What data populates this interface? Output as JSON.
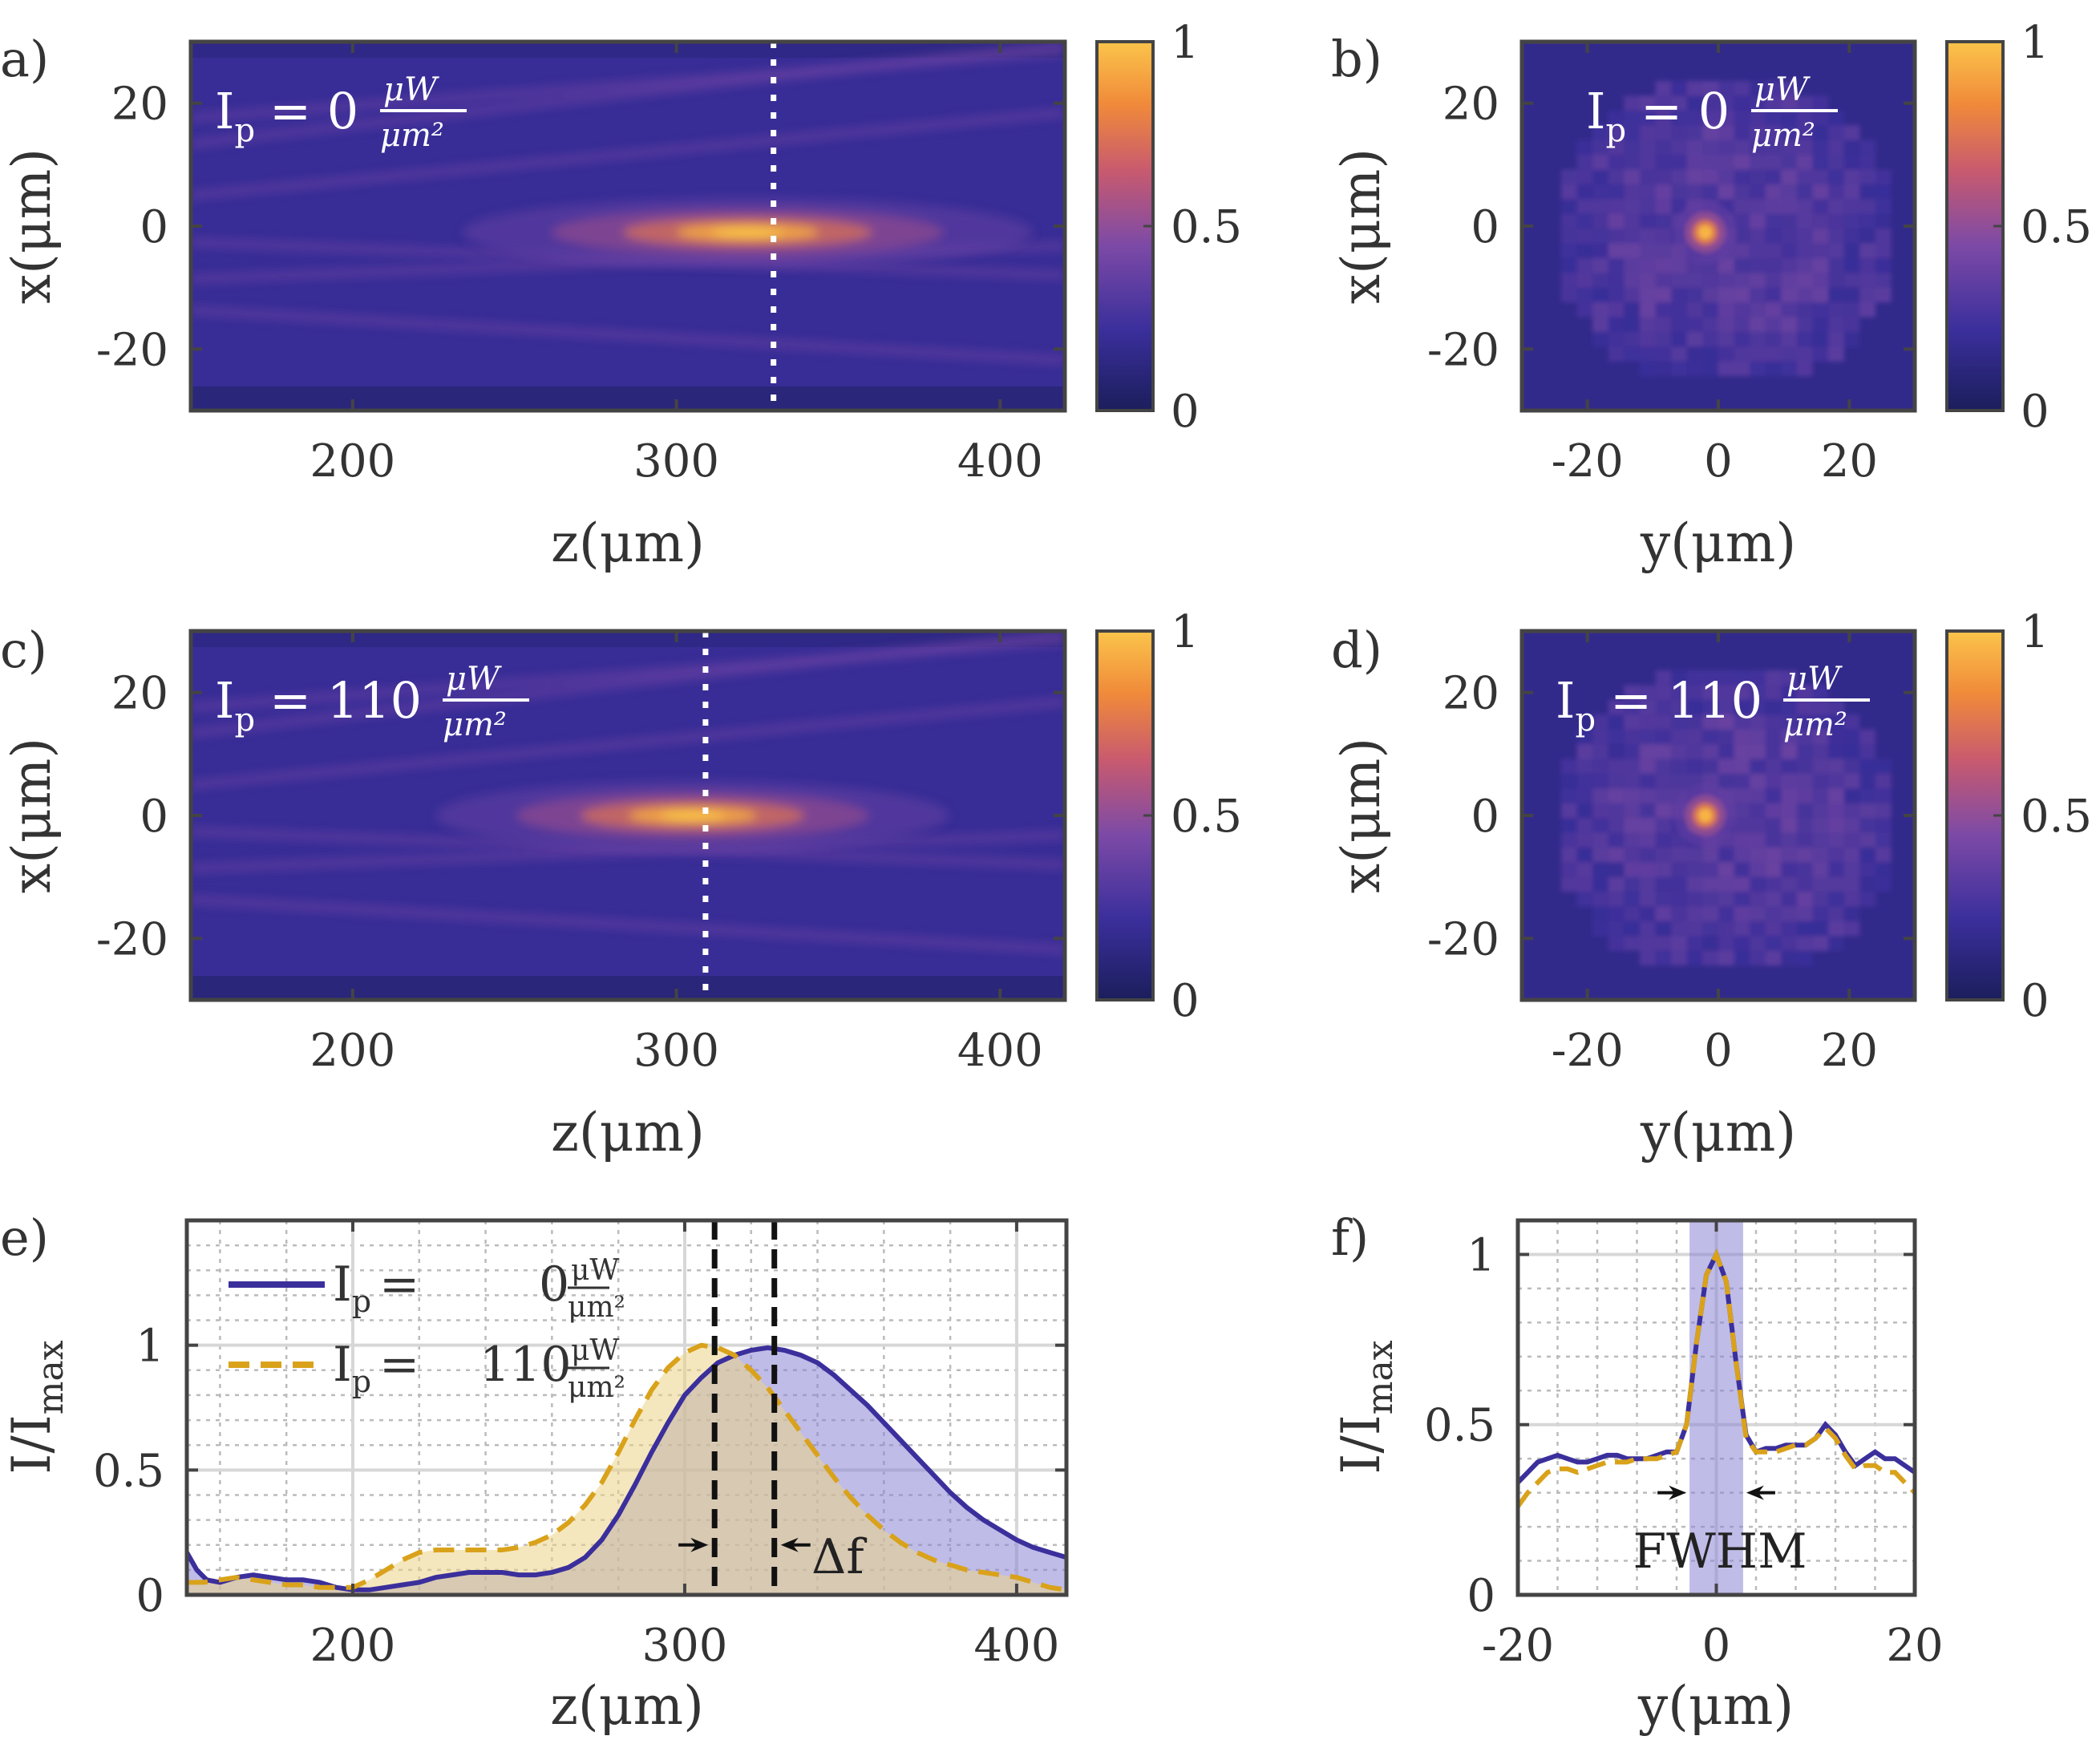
{
  "colors": {
    "blue_line": "#3b2f9c",
    "gold_line": "#d9a21a",
    "blue_fill": "#8b85d6",
    "gold_fill": "#ecd486",
    "colormap": [
      "#1b1e5c",
      "#3b2f9c",
      "#7d4aa6",
      "#c85a6f",
      "#f08a3a",
      "#fbc44a"
    ]
  },
  "chart_data": [
    {
      "id": "a",
      "type": "heatmap",
      "panel_label": "a)",
      "annotation": {
        "main": "I",
        "sub": "p",
        "eq": "= 0",
        "num": "μW",
        "den": "μm²"
      },
      "xlabel": "z(μm)",
      "ylabel": "x(μm)",
      "xlim": [
        150,
        420
      ],
      "ylim": [
        -30,
        30
      ],
      "xticks": [
        200,
        300,
        400
      ],
      "xtick_labels": [
        "200",
        "300",
        "400"
      ],
      "yticks": [
        20,
        0,
        -20
      ],
      "ytick_labels": [
        "20",
        "0",
        "-20"
      ],
      "focus": {
        "z": 322,
        "x": -1,
        "sz": 50,
        "sx": 1.6
      },
      "filaments": [
        [
          170,
          6,
          0.05
        ],
        [
          170,
          -3,
          -0.02
        ],
        [
          160,
          14,
          0.06
        ],
        [
          160,
          -14,
          -0.03
        ],
        [
          210,
          20,
          0.04
        ],
        [
          180,
          -8,
          0.02
        ]
      ],
      "marker_line": 330,
      "colorbar": {
        "range": [
          0,
          1
        ],
        "ticks": [
          0,
          0.5,
          1
        ],
        "tick_labels": [
          "0",
          "0.5",
          "1"
        ]
      }
    },
    {
      "id": "b",
      "type": "heatmap",
      "panel_label": "b)",
      "annotation": {
        "main": "I",
        "sub": "p",
        "eq": "= 0",
        "num": "μW",
        "den": "μm²"
      },
      "xlabel": "y(μm)",
      "ylabel": "x(μm)",
      "xlim": [
        -30,
        30
      ],
      "ylim": [
        -30,
        30
      ],
      "xticks": [
        -20,
        0,
        20
      ],
      "xtick_labels": [
        "-20",
        "0",
        "20"
      ],
      "yticks": [
        20,
        0,
        -20
      ],
      "ytick_labels": [
        "20",
        "0",
        "-20"
      ],
      "spot": {
        "y": -2,
        "x": -1,
        "s": 1.2
      },
      "colorbar": {
        "range": [
          0,
          1
        ],
        "ticks": [
          0,
          0.5,
          1
        ],
        "tick_labels": [
          "0",
          "0.5",
          "1"
        ]
      }
    },
    {
      "id": "c",
      "type": "heatmap",
      "panel_label": "c)",
      "annotation": {
        "main": "I",
        "sub": "p",
        "eq": "= 110",
        "num": "μW",
        "den": "μm²"
      },
      "xlabel": "z(μm)",
      "ylabel": "x(μm)",
      "xlim": [
        150,
        420
      ],
      "ylim": [
        -30,
        30
      ],
      "xticks": [
        200,
        300,
        400
      ],
      "xtick_labels": [
        "200",
        "300",
        "400"
      ],
      "yticks": [
        20,
        0,
        -20
      ],
      "ytick_labels": [
        "20",
        "0",
        "-20"
      ],
      "focus": {
        "z": 305,
        "x": 0,
        "sz": 45,
        "sx": 1.6
      },
      "filaments": [
        [
          170,
          6,
          0.05
        ],
        [
          170,
          -3,
          -0.02
        ],
        [
          160,
          14,
          0.06
        ],
        [
          160,
          -14,
          -0.03
        ],
        [
          210,
          20,
          0.04
        ],
        [
          180,
          -8,
          0.02
        ]
      ],
      "marker_line": 309,
      "colorbar": {
        "range": [
          0,
          1
        ],
        "ticks": [
          0,
          0.5,
          1
        ],
        "tick_labels": [
          "0",
          "0.5",
          "1"
        ]
      }
    },
    {
      "id": "d",
      "type": "heatmap",
      "panel_label": "d)",
      "annotation": {
        "main": "I",
        "sub": "p",
        "eq": "= 110",
        "num": "μW",
        "den": "μm²"
      },
      "xlabel": "y(μm)",
      "ylabel": "x(μm)",
      "xlim": [
        -30,
        30
      ],
      "ylim": [
        -30,
        30
      ],
      "xticks": [
        -20,
        0,
        20
      ],
      "xtick_labels": [
        "-20",
        "0",
        "20"
      ],
      "yticks": [
        20,
        0,
        -20
      ],
      "ytick_labels": [
        "20",
        "0",
        "-20"
      ],
      "spot": {
        "y": -2,
        "x": 0,
        "s": 1.2
      },
      "colorbar": {
        "range": [
          0,
          1
        ],
        "ticks": [
          0,
          0.5,
          1
        ],
        "tick_labels": [
          "0",
          "0.5",
          "1"
        ]
      }
    },
    {
      "id": "e",
      "type": "line",
      "panel_label": "e)",
      "xlabel": "z(μm)",
      "ylabel": "I/I",
      "ylabel_sub": "max",
      "xlim": [
        150,
        415
      ],
      "ylim": [
        0,
        1.5
      ],
      "xticks": [
        200,
        300,
        400
      ],
      "xtick_labels": [
        "200",
        "300",
        "400"
      ],
      "yticks": [
        0,
        0.5,
        1
      ],
      "ytick_labels": [
        "0",
        "0.5",
        "1"
      ],
      "grid": true,
      "legend_position": "top-left",
      "series": [
        {
          "name": "Ip = 0 μW/μm²",
          "legend_value": "0",
          "style": "solid",
          "x": [
            150,
            153,
            156,
            160,
            165,
            170,
            175,
            180,
            185,
            190,
            195,
            200,
            205,
            210,
            215,
            220,
            225,
            230,
            235,
            240,
            245,
            250,
            255,
            260,
            265,
            270,
            275,
            280,
            285,
            290,
            295,
            300,
            305,
            310,
            315,
            320,
            325,
            330,
            335,
            340,
            345,
            350,
            355,
            360,
            365,
            370,
            375,
            380,
            385,
            390,
            395,
            400,
            405,
            410,
            415
          ],
          "y": [
            0.17,
            0.1,
            0.06,
            0.05,
            0.07,
            0.08,
            0.07,
            0.06,
            0.06,
            0.05,
            0.03,
            0.02,
            0.02,
            0.03,
            0.04,
            0.05,
            0.07,
            0.08,
            0.09,
            0.09,
            0.09,
            0.08,
            0.08,
            0.09,
            0.11,
            0.15,
            0.22,
            0.32,
            0.44,
            0.57,
            0.69,
            0.8,
            0.87,
            0.93,
            0.96,
            0.98,
            0.99,
            0.98,
            0.96,
            0.93,
            0.88,
            0.82,
            0.76,
            0.69,
            0.62,
            0.55,
            0.48,
            0.41,
            0.35,
            0.3,
            0.26,
            0.22,
            0.19,
            0.17,
            0.15
          ]
        },
        {
          "name": "Ip = 110 μW/μm²",
          "legend_value": "110",
          "style": "dashed",
          "x": [
            150,
            155,
            160,
            165,
            170,
            175,
            180,
            185,
            190,
            195,
            200,
            205,
            210,
            215,
            220,
            225,
            230,
            235,
            240,
            245,
            250,
            255,
            260,
            265,
            270,
            275,
            280,
            285,
            290,
            295,
            300,
            305,
            310,
            315,
            320,
            325,
            330,
            335,
            340,
            345,
            350,
            355,
            360,
            365,
            370,
            375,
            380,
            385,
            390,
            395,
            400,
            405,
            410,
            415
          ],
          "y": [
            0.05,
            0.05,
            0.06,
            0.07,
            0.06,
            0.05,
            0.04,
            0.04,
            0.03,
            0.03,
            0.03,
            0.06,
            0.1,
            0.14,
            0.17,
            0.18,
            0.18,
            0.18,
            0.18,
            0.18,
            0.19,
            0.21,
            0.24,
            0.29,
            0.36,
            0.45,
            0.57,
            0.7,
            0.82,
            0.91,
            0.97,
            1.0,
            0.99,
            0.96,
            0.9,
            0.83,
            0.74,
            0.65,
            0.56,
            0.47,
            0.39,
            0.32,
            0.26,
            0.21,
            0.17,
            0.14,
            0.12,
            0.1,
            0.09,
            0.08,
            0.07,
            0.05,
            0.03,
            0.02
          ]
        }
      ],
      "vlines": [
        309,
        327
      ],
      "arrow_y": 0.2,
      "annotation_text": "Δf"
    },
    {
      "id": "f",
      "type": "line",
      "panel_label": "f)",
      "xlabel": "y(μm)",
      "ylabel": "I/I",
      "ylabel_sub": "max",
      "xlim": [
        -20,
        20
      ],
      "ylim": [
        0,
        1.1
      ],
      "xticks": [
        -20,
        0,
        20
      ],
      "xtick_labels": [
        "-20",
        "0",
        "20"
      ],
      "yticks": [
        0,
        0.5,
        1
      ],
      "ytick_labels": [
        "0",
        "0.5",
        "1"
      ],
      "grid": true,
      "band": [
        -2.7,
        2.7
      ],
      "series": [
        {
          "name": "Ip = 0",
          "style": "solid",
          "x": [
            -20,
            -19,
            -18,
            -17,
            -16,
            -15,
            -14,
            -13,
            -12,
            -11,
            -10,
            -9,
            -8,
            -7,
            -6,
            -5,
            -4,
            -3,
            -2,
            -1,
            0,
            1,
            2,
            3,
            4,
            5,
            6,
            7,
            8,
            9,
            10,
            11,
            12,
            13,
            14,
            15,
            16,
            17,
            18,
            19,
            20
          ],
          "y": [
            0.33,
            0.36,
            0.39,
            0.4,
            0.41,
            0.4,
            0.39,
            0.39,
            0.4,
            0.41,
            0.41,
            0.4,
            0.4,
            0.4,
            0.41,
            0.42,
            0.42,
            0.5,
            0.74,
            0.94,
            1.0,
            0.92,
            0.68,
            0.47,
            0.42,
            0.43,
            0.43,
            0.44,
            0.44,
            0.44,
            0.46,
            0.5,
            0.47,
            0.42,
            0.38,
            0.4,
            0.42,
            0.4,
            0.4,
            0.38,
            0.36
          ]
        },
        {
          "name": "Ip = 110",
          "style": "dashed",
          "x": [
            -20,
            -19,
            -18,
            -17,
            -16,
            -15,
            -14,
            -13,
            -12,
            -11,
            -10,
            -9,
            -8,
            -7,
            -6,
            -5,
            -4,
            -3,
            -2,
            -1,
            0,
            1,
            2,
            3,
            4,
            5,
            6,
            7,
            8,
            9,
            10,
            11,
            12,
            13,
            14,
            15,
            16,
            17,
            18,
            19,
            20
          ],
          "y": [
            0.26,
            0.3,
            0.33,
            0.36,
            0.37,
            0.37,
            0.36,
            0.37,
            0.38,
            0.39,
            0.39,
            0.39,
            0.4,
            0.4,
            0.4,
            0.41,
            0.42,
            0.5,
            0.74,
            0.94,
            1.0,
            0.92,
            0.68,
            0.46,
            0.42,
            0.42,
            0.42,
            0.43,
            0.44,
            0.44,
            0.46,
            0.49,
            0.46,
            0.41,
            0.37,
            0.38,
            0.38,
            0.36,
            0.36,
            0.33,
            0.3
          ]
        }
      ],
      "annotation_text": "FWHM"
    }
  ]
}
